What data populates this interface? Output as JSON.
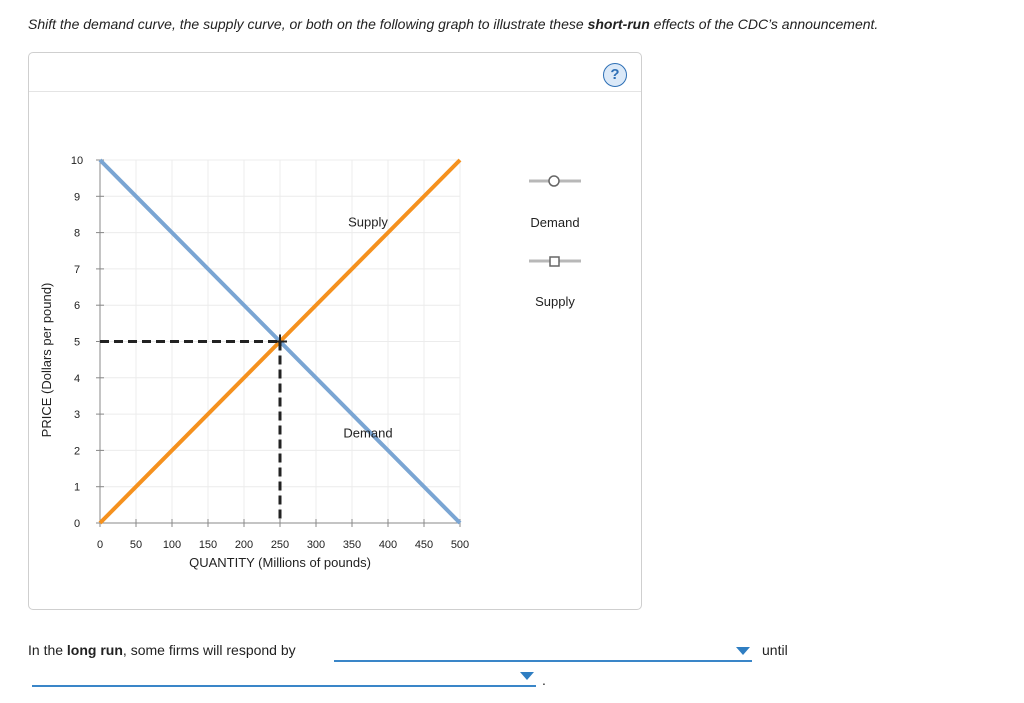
{
  "instruction": {
    "part1": "Shift the demand curve, the supply curve, or both on the following graph to illustrate these ",
    "bold": "short-run",
    "part2": " effects of the CDC’s announcement."
  },
  "help_icon": "?",
  "chart_data": {
    "type": "line",
    "xlabel": "QUANTITY (Millions of pounds)",
    "ylabel": "PRICE (Dollars per pound)",
    "xlim": [
      0,
      500
    ],
    "ylim": [
      0,
      10
    ],
    "xticks": [
      "0",
      "50",
      "100",
      "150",
      "200",
      "250",
      "300",
      "350",
      "400",
      "450",
      "500"
    ],
    "yticks": [
      "0",
      "1",
      "2",
      "3",
      "4",
      "5",
      "6",
      "7",
      "8",
      "9",
      "10"
    ],
    "grid": true,
    "series": [
      {
        "name": "Demand",
        "color": "#7aa5d3",
        "points": [
          [
            0,
            10
          ],
          [
            500,
            0
          ]
        ],
        "label_at": [
          400,
          2.5
        ]
      },
      {
        "name": "Supply",
        "color": "#f5911e",
        "points": [
          [
            0,
            0
          ],
          [
            500,
            10
          ]
        ],
        "label_at": [
          400,
          8.3
        ]
      }
    ],
    "equilibrium": {
      "x": 250,
      "y": 5
    }
  },
  "legend": {
    "demand_label": "Demand",
    "supply_label": "Supply",
    "demand_icon": "circle-handle-icon",
    "supply_icon": "square-handle-icon"
  },
  "bottom": {
    "prefix": "In the ",
    "bold": "long run",
    "suffix": ", some firms will respond by",
    "until": "until",
    "period": "."
  }
}
